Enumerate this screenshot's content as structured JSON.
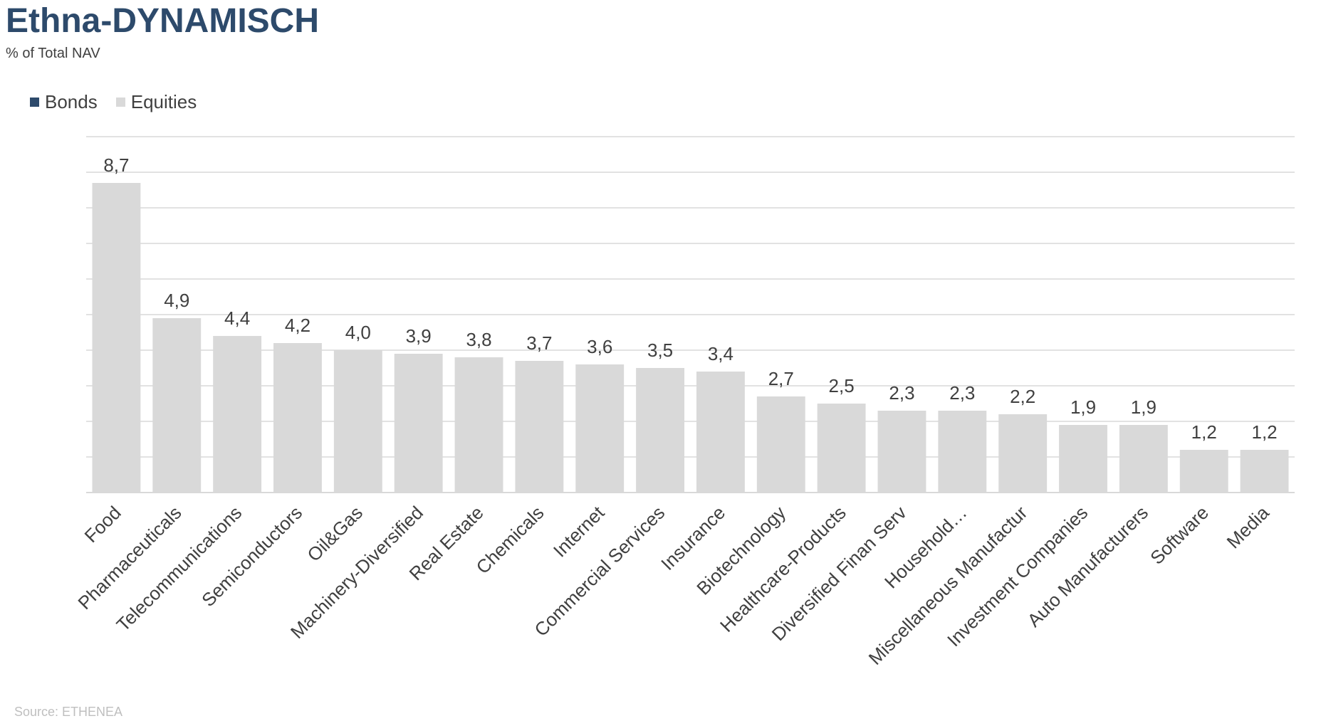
{
  "title": "Ethna-DYNAMISCH",
  "subtitle": "% of Total NAV",
  "source": "Source: ETHENEA",
  "colors": {
    "bonds": "#2d4a6b",
    "equities": "#d9d9d9",
    "grid": "#d9d9d9",
    "text": "#404040"
  },
  "chart_data": {
    "type": "bar",
    "legend": [
      "Bonds",
      "Equities"
    ],
    "legend_position": "top-left",
    "grid": true,
    "ylim": [
      0,
      10
    ],
    "categories": [
      "Food",
      "Pharmaceuticals",
      "Telecommunications",
      "Semiconductors",
      "Oil&Gas",
      "Machinery-Diversified",
      "Real Estate",
      "Chemicals",
      "Internet",
      "Commercial Services",
      "Insurance",
      "Biotechnology",
      "Healthcare-Products",
      "Diversified Finan Serv",
      "Household…",
      "Miscellaneous Manufactur",
      "Investment Companies",
      "Auto Manufacturers",
      "Software",
      "Media"
    ],
    "series": [
      {
        "name": "Bonds",
        "values": [
          0,
          0,
          0,
          0,
          0,
          0,
          0,
          0,
          0,
          0,
          0,
          0,
          0,
          0,
          0,
          0,
          0,
          0,
          0,
          0
        ]
      },
      {
        "name": "Equities",
        "values": [
          8.7,
          4.9,
          4.4,
          4.2,
          4.0,
          3.9,
          3.8,
          3.7,
          3.6,
          3.5,
          3.4,
          2.7,
          2.5,
          2.3,
          2.3,
          2.2,
          1.9,
          1.9,
          1.2,
          1.2
        ]
      }
    ],
    "data_labels": [
      "8,7",
      "4,9",
      "4,4",
      "4,2",
      "4,0",
      "3,9",
      "3,8",
      "3,7",
      "3,6",
      "3,5",
      "3,4",
      "2,7",
      "2,5",
      "2,3",
      "2,3",
      "2,2",
      "1,9",
      "1,9",
      "1,2",
      "1,2"
    ]
  }
}
